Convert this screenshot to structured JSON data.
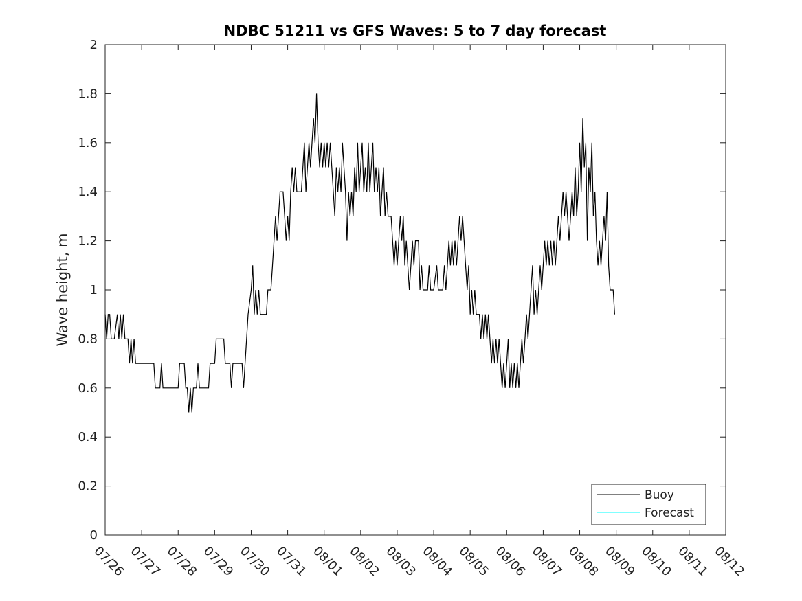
{
  "chart_data": {
    "type": "line",
    "title": "NDBC 51211 vs GFS Waves: 5 to 7 day forecast",
    "xlabel": "",
    "ylabel": "Wave height, m",
    "x_ticks": [
      "07/26",
      "07/27",
      "07/28",
      "07/29",
      "07/30",
      "07/31",
      "08/01",
      "08/02",
      "08/03",
      "08/04",
      "08/05",
      "08/06",
      "08/07",
      "08/08",
      "08/09",
      "08/10",
      "08/11",
      "08/12"
    ],
    "y_ticks": [
      "0",
      "0.2",
      "0.4",
      "0.6",
      "0.8",
      "1",
      "1.2",
      "1.4",
      "1.6",
      "1.8",
      "2"
    ],
    "ylim": [
      0,
      2
    ],
    "grid": false,
    "legend_position": "bottom-right",
    "series": [
      {
        "name": "Buoy",
        "color": "#000000",
        "points": [
          [
            "07/26 00:00",
            0.9
          ],
          [
            "07/26 01:00",
            0.8
          ],
          [
            "07/26 02:00",
            0.9
          ],
          [
            "07/26 03:00",
            0.9
          ],
          [
            "07/26 04:00",
            0.8
          ],
          [
            "07/26 06:00",
            0.8
          ],
          [
            "07/26 08:00",
            0.9
          ],
          [
            "07/26 09:00",
            0.8
          ],
          [
            "07/26 10:00",
            0.9
          ],
          [
            "07/26 11:00",
            0.8
          ],
          [
            "07/26 12:00",
            0.9
          ],
          [
            "07/26 13:00",
            0.8
          ],
          [
            "07/26 14:00",
            0.8
          ],
          [
            "07/26 15:00",
            0.8
          ],
          [
            "07/26 16:00",
            0.7
          ],
          [
            "07/26 17:00",
            0.8
          ],
          [
            "07/26 18:00",
            0.7
          ],
          [
            "07/26 19:00",
            0.8
          ],
          [
            "07/26 20:00",
            0.7
          ],
          [
            "07/27 00:00",
            0.7
          ],
          [
            "07/27 04:00",
            0.7
          ],
          [
            "07/27 08:00",
            0.7
          ],
          [
            "07/27 09:00",
            0.6
          ],
          [
            "07/27 12:00",
            0.6
          ],
          [
            "07/27 13:00",
            0.7
          ],
          [
            "07/27 14:00",
            0.6
          ],
          [
            "07/27 18:00",
            0.6
          ],
          [
            "07/28 00:00",
            0.6
          ],
          [
            "07/28 01:00",
            0.7
          ],
          [
            "07/28 04:00",
            0.7
          ],
          [
            "07/28 05:00",
            0.6
          ],
          [
            "07/28 06:00",
            0.6
          ],
          [
            "07/28 07:00",
            0.5
          ],
          [
            "07/28 08:00",
            0.6
          ],
          [
            "07/28 09:00",
            0.5
          ],
          [
            "07/28 10:00",
            0.6
          ],
          [
            "07/28 12:00",
            0.6
          ],
          [
            "07/28 13:00",
            0.7
          ],
          [
            "07/28 14:00",
            0.6
          ],
          [
            "07/28 18:00",
            0.6
          ],
          [
            "07/28 20:00",
            0.6
          ],
          [
            "07/28 21:00",
            0.7
          ],
          [
            "07/29 00:00",
            0.7
          ],
          [
            "07/29 01:00",
            0.8
          ],
          [
            "07/29 06:00",
            0.8
          ],
          [
            "07/29 07:00",
            0.7
          ],
          [
            "07/29 10:00",
            0.7
          ],
          [
            "07/29 11:00",
            0.6
          ],
          [
            "07/29 12:00",
            0.7
          ],
          [
            "07/29 18:00",
            0.7
          ],
          [
            "07/29 19:00",
            0.6
          ],
          [
            "07/29 20:00",
            0.7
          ],
          [
            "07/29 21:00",
            0.8
          ],
          [
            "07/29 22:00",
            0.9
          ],
          [
            "07/30 00:00",
            1.0
          ],
          [
            "07/30 01:00",
            1.1
          ],
          [
            "07/30 02:00",
            0.9
          ],
          [
            "07/30 03:00",
            1.0
          ],
          [
            "07/30 04:00",
            0.9
          ],
          [
            "07/30 05:00",
            1.0
          ],
          [
            "07/30 06:00",
            0.9
          ],
          [
            "07/30 10:00",
            0.9
          ],
          [
            "07/30 11:00",
            1.0
          ],
          [
            "07/30 13:00",
            1.0
          ],
          [
            "07/30 14:00",
            1.1
          ],
          [
            "07/30 15:00",
            1.2
          ],
          [
            "07/30 16:00",
            1.3
          ],
          [
            "07/30 17:00",
            1.2
          ],
          [
            "07/30 18:00",
            1.3
          ],
          [
            "07/30 19:00",
            1.4
          ],
          [
            "07/30 21:00",
            1.4
          ],
          [
            "07/30 22:00",
            1.3
          ],
          [
            "07/30 23:00",
            1.2
          ],
          [
            "07/31 00:00",
            1.3
          ],
          [
            "07/31 01:00",
            1.2
          ],
          [
            "07/31 02:00",
            1.4
          ],
          [
            "07/31 03:00",
            1.5
          ],
          [
            "07/31 04:00",
            1.4
          ],
          [
            "07/31 05:00",
            1.5
          ],
          [
            "07/31 06:00",
            1.4
          ],
          [
            "07/31 09:00",
            1.4
          ],
          [
            "07/31 10:00",
            1.5
          ],
          [
            "07/31 11:00",
            1.6
          ],
          [
            "07/31 12:00",
            1.4
          ],
          [
            "07/31 13:00",
            1.5
          ],
          [
            "07/31 14:00",
            1.6
          ],
          [
            "07/31 15:00",
            1.5
          ],
          [
            "07/31 16:00",
            1.6
          ],
          [
            "07/31 17:00",
            1.7
          ],
          [
            "07/31 18:00",
            1.6
          ],
          [
            "07/31 19:00",
            1.8
          ],
          [
            "07/31 20:00",
            1.6
          ],
          [
            "07/31 21:00",
            1.5
          ],
          [
            "07/31 22:00",
            1.6
          ],
          [
            "07/31 23:00",
            1.5
          ],
          [
            "08/01 00:00",
            1.6
          ],
          [
            "08/01 01:00",
            1.5
          ],
          [
            "08/01 02:00",
            1.6
          ],
          [
            "08/01 03:00",
            1.5
          ],
          [
            "08/01 04:00",
            1.6
          ],
          [
            "08/01 05:00",
            1.5
          ],
          [
            "08/01 06:00",
            1.4
          ],
          [
            "08/01 07:00",
            1.3
          ],
          [
            "08/01 08:00",
            1.5
          ],
          [
            "08/01 09:00",
            1.4
          ],
          [
            "08/01 10:00",
            1.5
          ],
          [
            "08/01 11:00",
            1.4
          ],
          [
            "08/01 12:00",
            1.6
          ],
          [
            "08/01 13:00",
            1.5
          ],
          [
            "08/01 14:00",
            1.4
          ],
          [
            "08/01 15:00",
            1.2
          ],
          [
            "08/01 16:00",
            1.4
          ],
          [
            "08/01 17:00",
            1.3
          ],
          [
            "08/01 18:00",
            1.4
          ],
          [
            "08/01 19:00",
            1.3
          ],
          [
            "08/01 20:00",
            1.5
          ],
          [
            "08/01 21:00",
            1.4
          ],
          [
            "08/01 22:00",
            1.6
          ],
          [
            "08/01 23:00",
            1.4
          ],
          [
            "08/02 00:00",
            1.5
          ],
          [
            "08/02 01:00",
            1.6
          ],
          [
            "08/02 02:00",
            1.4
          ],
          [
            "08/02 03:00",
            1.5
          ],
          [
            "08/02 04:00",
            1.4
          ],
          [
            "08/02 05:00",
            1.6
          ],
          [
            "08/02 06:00",
            1.4
          ],
          [
            "08/02 07:00",
            1.5
          ],
          [
            "08/02 08:00",
            1.6
          ],
          [
            "08/02 09:00",
            1.4
          ],
          [
            "08/02 10:00",
            1.5
          ],
          [
            "08/02 11:00",
            1.4
          ],
          [
            "08/02 12:00",
            1.5
          ],
          [
            "08/02 13:00",
            1.3
          ],
          [
            "08/02 14:00",
            1.4
          ],
          [
            "08/02 15:00",
            1.5
          ],
          [
            "08/02 16:00",
            1.3
          ],
          [
            "08/02 17:00",
            1.4
          ],
          [
            "08/02 18:00",
            1.3
          ],
          [
            "08/02 20:00",
            1.3
          ],
          [
            "08/02 21:00",
            1.2
          ],
          [
            "08/02 22:00",
            1.1
          ],
          [
            "08/02 23:00",
            1.2
          ],
          [
            "08/03 00:00",
            1.1
          ],
          [
            "08/03 01:00",
            1.2
          ],
          [
            "08/03 02:00",
            1.3
          ],
          [
            "08/03 03:00",
            1.2
          ],
          [
            "08/03 04:00",
            1.3
          ],
          [
            "08/03 05:00",
            1.1
          ],
          [
            "08/03 06:00",
            1.2
          ],
          [
            "08/03 07:00",
            1.1
          ],
          [
            "08/03 08:00",
            1.0
          ],
          [
            "08/03 09:00",
            1.1
          ],
          [
            "08/03 10:00",
            1.2
          ],
          [
            "08/03 11:00",
            1.1
          ],
          [
            "08/03 12:00",
            1.2
          ],
          [
            "08/03 14:00",
            1.2
          ],
          [
            "08/03 15:00",
            1.0
          ],
          [
            "08/03 16:00",
            1.1
          ],
          [
            "08/03 17:00",
            1.0
          ],
          [
            "08/03 20:00",
            1.0
          ],
          [
            "08/03 21:00",
            1.1
          ],
          [
            "08/03 22:00",
            1.0
          ],
          [
            "08/04 00:00",
            1.0
          ],
          [
            "08/04 02:00",
            1.1
          ],
          [
            "08/04 03:00",
            1.0
          ],
          [
            "08/04 06:00",
            1.0
          ],
          [
            "08/04 07:00",
            1.1
          ],
          [
            "08/04 08:00",
            1.0
          ],
          [
            "08/04 09:00",
            1.1
          ],
          [
            "08/04 10:00",
            1.2
          ],
          [
            "08/04 11:00",
            1.1
          ],
          [
            "08/04 12:00",
            1.2
          ],
          [
            "08/04 13:00",
            1.1
          ],
          [
            "08/04 14:00",
            1.2
          ],
          [
            "08/04 15:00",
            1.1
          ],
          [
            "08/04 16:00",
            1.2
          ],
          [
            "08/04 17:00",
            1.3
          ],
          [
            "08/04 18:00",
            1.2
          ],
          [
            "08/04 19:00",
            1.3
          ],
          [
            "08/04 20:00",
            1.2
          ],
          [
            "08/04 21:00",
            1.1
          ],
          [
            "08/04 22:00",
            1.0
          ],
          [
            "08/04 23:00",
            1.1
          ],
          [
            "08/05 00:00",
            0.9
          ],
          [
            "08/05 01:00",
            1.0
          ],
          [
            "08/05 02:00",
            0.9
          ],
          [
            "08/05 03:00",
            1.0
          ],
          [
            "08/05 04:00",
            0.9
          ],
          [
            "08/05 06:00",
            0.9
          ],
          [
            "08/05 07:00",
            0.8
          ],
          [
            "08/05 08:00",
            0.9
          ],
          [
            "08/05 09:00",
            0.8
          ],
          [
            "08/05 10:00",
            0.9
          ],
          [
            "08/05 11:00",
            0.8
          ],
          [
            "08/05 12:00",
            0.9
          ],
          [
            "08/05 13:00",
            0.8
          ],
          [
            "08/05 14:00",
            0.7
          ],
          [
            "08/05 15:00",
            0.8
          ],
          [
            "08/05 16:00",
            0.7
          ],
          [
            "08/05 17:00",
            0.8
          ],
          [
            "08/05 18:00",
            0.7
          ],
          [
            "08/05 19:00",
            0.8
          ],
          [
            "08/05 20:00",
            0.7
          ],
          [
            "08/05 21:00",
            0.6
          ],
          [
            "08/05 22:00",
            0.7
          ],
          [
            "08/05 23:00",
            0.6
          ],
          [
            "08/06 00:00",
            0.7
          ],
          [
            "08/06 01:00",
            0.8
          ],
          [
            "08/06 02:00",
            0.6
          ],
          [
            "08/06 03:00",
            0.7
          ],
          [
            "08/06 04:00",
            0.6
          ],
          [
            "08/06 05:00",
            0.7
          ],
          [
            "08/06 06:00",
            0.6
          ],
          [
            "08/06 07:00",
            0.7
          ],
          [
            "08/06 08:00",
            0.6
          ],
          [
            "08/06 09:00",
            0.7
          ],
          [
            "08/06 10:00",
            0.8
          ],
          [
            "08/06 11:00",
            0.7
          ],
          [
            "08/06 12:00",
            0.8
          ],
          [
            "08/06 13:00",
            0.9
          ],
          [
            "08/06 14:00",
            0.8
          ],
          [
            "08/06 15:00",
            0.9
          ],
          [
            "08/06 16:00",
            1.0
          ],
          [
            "08/06 17:00",
            1.1
          ],
          [
            "08/06 18:00",
            0.9
          ],
          [
            "08/06 19:00",
            1.0
          ],
          [
            "08/06 20:00",
            0.9
          ],
          [
            "08/06 21:00",
            1.0
          ],
          [
            "08/06 22:00",
            1.1
          ],
          [
            "08/06 23:00",
            1.0
          ],
          [
            "08/07 00:00",
            1.1
          ],
          [
            "08/07 01:00",
            1.2
          ],
          [
            "08/07 02:00",
            1.1
          ],
          [
            "08/07 03:00",
            1.2
          ],
          [
            "08/07 04:00",
            1.1
          ],
          [
            "08/07 05:00",
            1.2
          ],
          [
            "08/07 06:00",
            1.1
          ],
          [
            "08/07 07:00",
            1.2
          ],
          [
            "08/07 08:00",
            1.1
          ],
          [
            "08/07 09:00",
            1.2
          ],
          [
            "08/07 10:00",
            1.3
          ],
          [
            "08/07 11:00",
            1.2
          ],
          [
            "08/07 12:00",
            1.3
          ],
          [
            "08/07 13:00",
            1.4
          ],
          [
            "08/07 14:00",
            1.3
          ],
          [
            "08/07 15:00",
            1.4
          ],
          [
            "08/07 16:00",
            1.3
          ],
          [
            "08/07 17:00",
            1.2
          ],
          [
            "08/07 18:00",
            1.3
          ],
          [
            "08/07 19:00",
            1.4
          ],
          [
            "08/07 20:00",
            1.3
          ],
          [
            "08/07 21:00",
            1.5
          ],
          [
            "08/07 22:00",
            1.3
          ],
          [
            "08/07 23:00",
            1.4
          ],
          [
            "08/08 00:00",
            1.6
          ],
          [
            "08/08 01:00",
            1.4
          ],
          [
            "08/08 02:00",
            1.7
          ],
          [
            "08/08 03:00",
            1.5
          ],
          [
            "08/08 04:00",
            1.6
          ],
          [
            "08/08 05:00",
            1.2
          ],
          [
            "08/08 06:00",
            1.5
          ],
          [
            "08/08 07:00",
            1.4
          ],
          [
            "08/08 08:00",
            1.6
          ],
          [
            "08/08 09:00",
            1.3
          ],
          [
            "08/08 10:00",
            1.4
          ],
          [
            "08/08 11:00",
            1.2
          ],
          [
            "08/08 12:00",
            1.1
          ],
          [
            "08/08 13:00",
            1.2
          ],
          [
            "08/08 14:00",
            1.1
          ],
          [
            "08/08 15:00",
            1.2
          ],
          [
            "08/08 16:00",
            1.3
          ],
          [
            "08/08 17:00",
            1.2
          ],
          [
            "08/08 18:00",
            1.4
          ],
          [
            "08/08 19:00",
            1.1
          ],
          [
            "08/08 20:00",
            1.0
          ],
          [
            "08/08 22:00",
            1.0
          ],
          [
            "08/08 23:00",
            0.9
          ]
        ]
      },
      {
        "name": "Forecast",
        "color": "#00ffff",
        "points": []
      }
    ]
  }
}
